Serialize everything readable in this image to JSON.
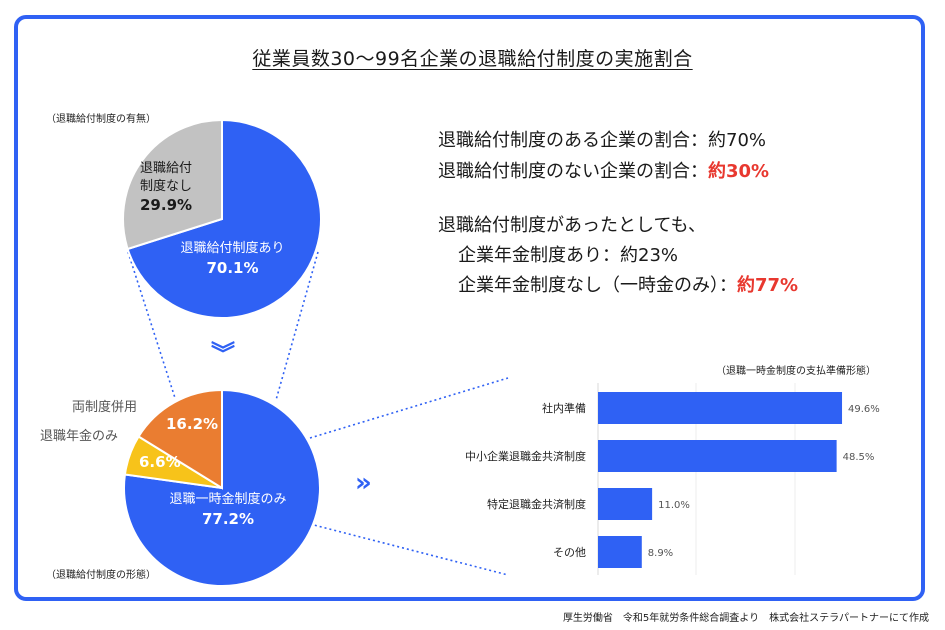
{
  "title": "従業員数30〜99名企業の退職給付制度の実施割合",
  "labels": {
    "top_pie_caption": "（退職給付制度の有無）",
    "bottom_pie_caption": "（退職給付制度の形態）",
    "bar_caption": "（退職一時金制度の支払準備形態）"
  },
  "summary": {
    "line1": "退職給付制度のある企業の割合：約70%",
    "line2_prefix": "退職給付制度のない企業の割合：",
    "line2_highlight": "約30%",
    "line3": "退職給付制度があったとしても、",
    "line4": "企業年金制度あり：約23%",
    "line5_prefix": "企業年金制度なし（一時金のみ）：",
    "line5_highlight": "約77%"
  },
  "footer": "厚生労働省　令和5年就労条件総合調査より　株式会社ステラパートナーにて作成",
  "colors": {
    "blue": "#2f61f4",
    "gray": "#c2c2c2",
    "orange": "#ea7d31",
    "yellow": "#f7c31a",
    "red": "#e8382f"
  },
  "chart_data": [
    {
      "type": "pie",
      "title": "（退職給付制度の有無）",
      "slices": [
        {
          "label": "退職給付制度あり",
          "value": 70.1,
          "display": "70.1%",
          "color": "#2f61f4"
        },
        {
          "label": "退職給付制度なし",
          "value": 29.9,
          "display": "29.9%",
          "color": "#c2c2c2"
        }
      ]
    },
    {
      "type": "pie",
      "title": "（退職給付制度の形態）",
      "slices": [
        {
          "label": "退職一時金制度のみ",
          "value": 77.2,
          "display": "77.2%",
          "color": "#2f61f4"
        },
        {
          "label": "退職年金のみ",
          "value": 6.6,
          "display": "6.6%",
          "color": "#f7c31a"
        },
        {
          "label": "両制度併用",
          "value": 16.2,
          "display": "16.2%",
          "color": "#ea7d31"
        }
      ]
    },
    {
      "type": "bar",
      "orientation": "horizontal",
      "title": "（退職一時金制度の支払準備形態）",
      "categories": [
        "社内準備",
        "中小企業退職金共済制度",
        "特定退職金共済制度",
        "その他"
      ],
      "values": [
        49.6,
        48.5,
        11.0,
        8.9
      ],
      "value_labels": [
        "49.6%",
        "48.5%",
        "11.0%",
        "8.9%"
      ],
      "xlim": [
        0,
        50
      ]
    }
  ]
}
